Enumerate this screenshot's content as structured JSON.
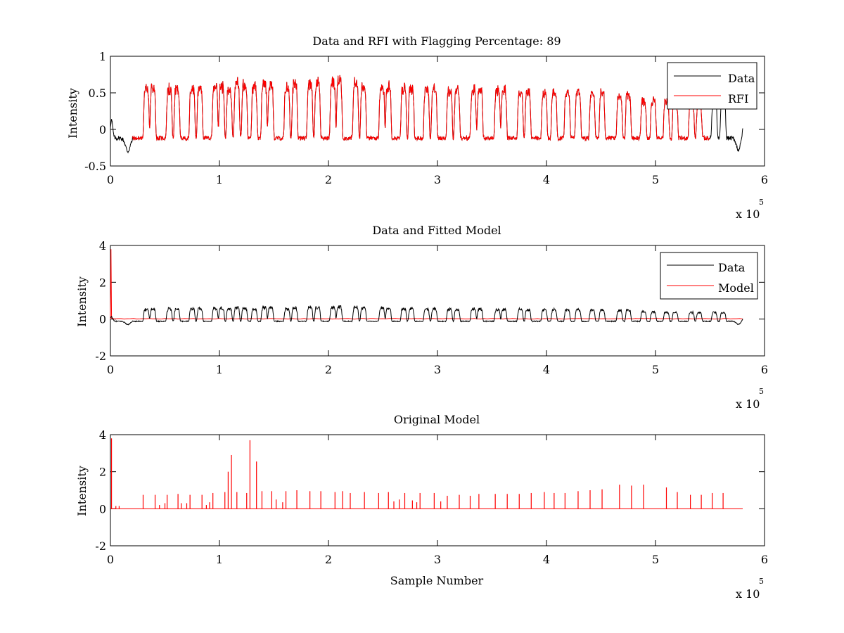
{
  "chart_data": [
    {
      "type": "line",
      "title": "Data and RFI with Flagging Percentage: 89",
      "xlabel": "",
      "ylabel": "Intensity",
      "xlim": [
        0,
        6
      ],
      "ylim": [
        -0.5,
        1
      ],
      "xticks": [
        0,
        1,
        2,
        3,
        4,
        5,
        6
      ],
      "xtick_labels": [
        "0",
        "1",
        "2",
        "3",
        "4",
        "5",
        "6"
      ],
      "yticks": [
        -0.5,
        0,
        0.5,
        1
      ],
      "ytick_labels": [
        "-0.5",
        "0",
        "0.5",
        "1"
      ],
      "x_multiplier": "x 10",
      "x_multiplier_exponent": "5",
      "legend_position": "top-right",
      "baseline": -0.12,
      "span": [
        0,
        5.8
      ],
      "peaks": [
        0.33,
        0.39,
        0.54,
        0.61,
        0.75,
        0.82,
        0.96,
        1.02,
        1.09,
        1.16,
        1.23,
        1.32,
        1.41,
        1.47,
        1.62,
        1.69,
        1.83,
        1.9,
        2.04,
        2.1,
        2.25,
        2.32,
        2.49,
        2.55,
        2.69,
        2.76,
        2.9,
        2.97,
        3.11,
        3.18,
        3.33,
        3.39,
        3.55,
        3.61,
        3.76,
        3.83,
        3.98,
        4.07,
        4.19,
        4.29,
        4.42,
        4.51,
        4.67,
        4.75,
        4.89,
        4.98,
        5.1,
        5.18,
        5.33,
        5.4,
        5.54,
        5.62
      ],
      "peak_heights": [
        0.58,
        0.58,
        0.58,
        0.58,
        0.6,
        0.6,
        0.62,
        0.62,
        0.58,
        0.66,
        0.64,
        0.6,
        0.67,
        0.66,
        0.6,
        0.64,
        0.68,
        0.67,
        0.68,
        0.7,
        0.68,
        0.66,
        0.62,
        0.62,
        0.6,
        0.6,
        0.58,
        0.6,
        0.56,
        0.56,
        0.58,
        0.58,
        0.56,
        0.56,
        0.56,
        0.54,
        0.52,
        0.54,
        0.54,
        0.54,
        0.52,
        0.52,
        0.5,
        0.5,
        0.42,
        0.4,
        0.4,
        0.38,
        0.38,
        0.38,
        0.38,
        0.38
      ],
      "series": [
        {
          "name": "Data",
          "color": "#000000"
        },
        {
          "name": "RFI",
          "color": "#ff0000"
        }
      ]
    },
    {
      "type": "line",
      "title": "Data and Fitted Model",
      "xlabel": "",
      "ylabel": "Intensity",
      "xlim": [
        0,
        6
      ],
      "ylim": [
        -2,
        4
      ],
      "xticks": [
        0,
        1,
        2,
        3,
        4,
        5,
        6
      ],
      "xtick_labels": [
        "0",
        "1",
        "2",
        "3",
        "4",
        "5",
        "6"
      ],
      "yticks": [
        -2,
        0,
        2,
        4
      ],
      "ytick_labels": [
        "-2",
        "0",
        "2",
        "4"
      ],
      "x_multiplier": "x 10",
      "x_multiplier_exponent": "5",
      "legend_position": "top-right",
      "model_start_spike": 3.8,
      "series": [
        {
          "name": "Data",
          "color": "#000000"
        },
        {
          "name": "Model",
          "color": "#ff0000"
        }
      ]
    },
    {
      "type": "line",
      "title": "Original Model",
      "xlabel": "Sample Number",
      "ylabel": "Intensity",
      "xlim": [
        0,
        6
      ],
      "ylim": [
        -2,
        4
      ],
      "xticks": [
        0,
        1,
        2,
        3,
        4,
        5,
        6
      ],
      "xtick_labels": [
        "0",
        "1",
        "2",
        "3",
        "4",
        "5",
        "6"
      ],
      "yticks": [
        -2,
        0,
        2,
        4
      ],
      "ytick_labels": [
        "-2",
        "0",
        "2",
        "4"
      ],
      "x_multiplier": "x 10",
      "x_multiplier_exponent": "5",
      "spikes": [
        [
          0.01,
          3.8
        ],
        [
          0.05,
          0.15
        ],
        [
          0.08,
          0.15
        ],
        [
          0.3,
          0.75
        ],
        [
          0.41,
          0.75
        ],
        [
          0.45,
          0.2
        ],
        [
          0.5,
          0.3
        ],
        [
          0.52,
          0.75
        ],
        [
          0.62,
          0.8
        ],
        [
          0.65,
          0.3
        ],
        [
          0.7,
          0.3
        ],
        [
          0.73,
          0.75
        ],
        [
          0.84,
          0.75
        ],
        [
          0.88,
          0.2
        ],
        [
          0.91,
          0.35
        ],
        [
          0.94,
          0.85
        ],
        [
          1.05,
          0.9
        ],
        [
          1.08,
          2.0
        ],
        [
          1.11,
          2.9
        ],
        [
          1.16,
          0.9
        ],
        [
          1.25,
          0.85
        ],
        [
          1.28,
          3.7
        ],
        [
          1.34,
          2.55
        ],
        [
          1.39,
          0.95
        ],
        [
          1.48,
          0.95
        ],
        [
          1.52,
          0.5
        ],
        [
          1.58,
          0.35
        ],
        [
          1.61,
          0.95
        ],
        [
          1.71,
          1.0
        ],
        [
          1.83,
          0.95
        ],
        [
          1.93,
          0.95
        ],
        [
          2.06,
          0.9
        ],
        [
          2.13,
          0.95
        ],
        [
          2.2,
          0.85
        ],
        [
          2.33,
          0.9
        ],
        [
          2.46,
          0.85
        ],
        [
          2.55,
          0.9
        ],
        [
          2.6,
          0.4
        ],
        [
          2.65,
          0.5
        ],
        [
          2.7,
          0.85
        ],
        [
          2.77,
          0.45
        ],
        [
          2.81,
          0.35
        ],
        [
          2.84,
          0.85
        ],
        [
          2.97,
          0.85
        ],
        [
          3.03,
          0.4
        ],
        [
          3.09,
          0.7
        ],
        [
          3.2,
          0.75
        ],
        [
          3.3,
          0.7
        ],
        [
          3.38,
          0.8
        ],
        [
          3.53,
          0.8
        ],
        [
          3.64,
          0.8
        ],
        [
          3.75,
          0.8
        ],
        [
          3.86,
          0.85
        ],
        [
          3.98,
          0.9
        ],
        [
          4.07,
          0.85
        ],
        [
          4.17,
          0.85
        ],
        [
          4.29,
          0.95
        ],
        [
          4.4,
          1.0
        ],
        [
          4.51,
          1.05
        ],
        [
          4.67,
          1.3
        ],
        [
          4.78,
          1.25
        ],
        [
          4.89,
          1.3
        ],
        [
          5.1,
          1.15
        ],
        [
          5.2,
          0.9
        ],
        [
          5.32,
          0.75
        ],
        [
          5.42,
          0.75
        ],
        [
          5.52,
          0.85
        ],
        [
          5.62,
          0.85
        ]
      ],
      "span": [
        0,
        5.8
      ]
    }
  ]
}
